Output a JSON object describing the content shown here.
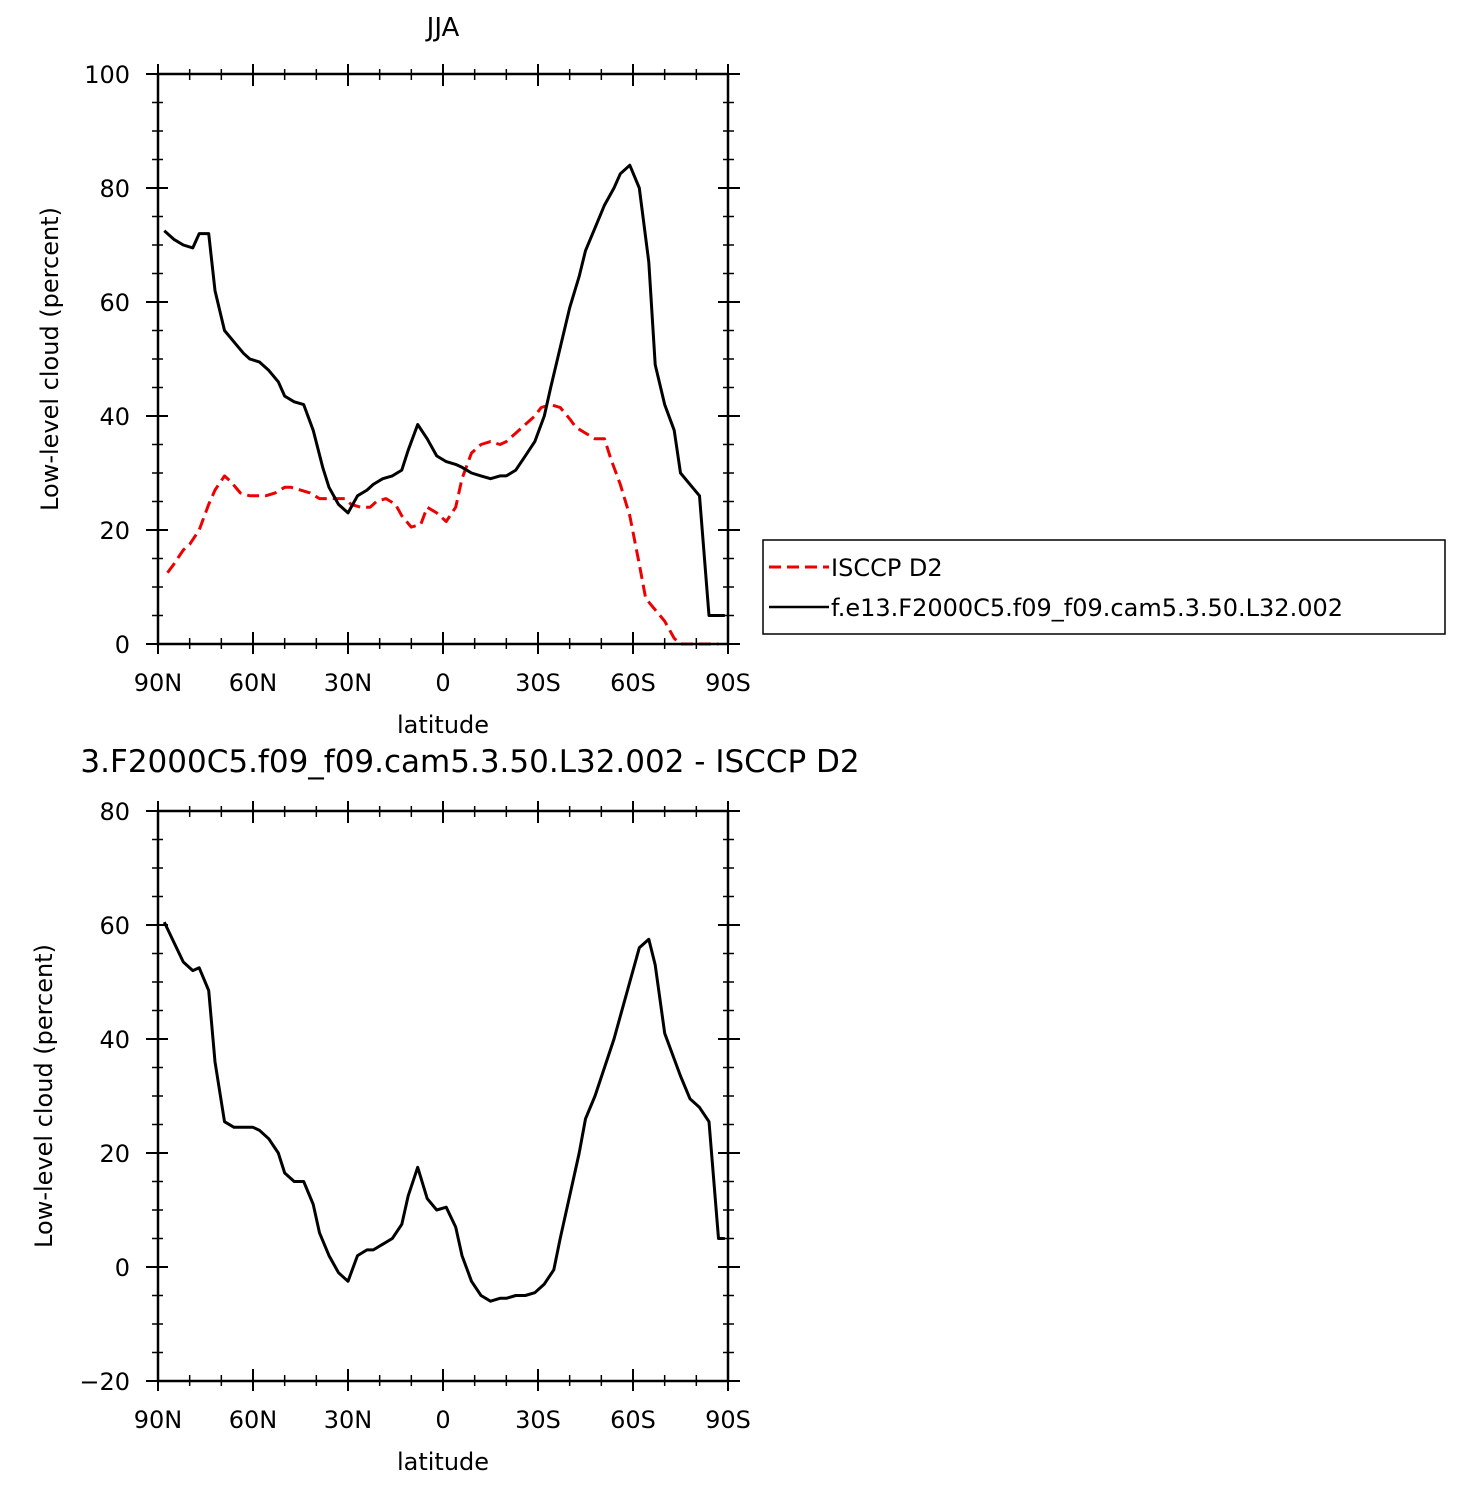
{
  "chart_data": [
    {
      "type": "line",
      "title": "JJA",
      "xlabel": "latitude",
      "ylabel": "Low-level cloud (percent)",
      "xlim": [
        90,
        -90
      ],
      "ylim": [
        0,
        100
      ],
      "x_ticks": [
        90,
        60,
        30,
        0,
        -30,
        -60,
        -90
      ],
      "x_tick_labels": [
        "90N",
        "60N",
        "30N",
        "0",
        "30S",
        "60S",
        "90S"
      ],
      "y_ticks": [
        0,
        20,
        40,
        60,
        80,
        100
      ],
      "y_tick_labels": [
        "0",
        "20",
        "40",
        "60",
        "80",
        "100"
      ],
      "legend_position": "right",
      "series": [
        {
          "name": "ISCCP D2",
          "color": "#ee0000",
          "dash": "dashed",
          "x": [
            87,
            85,
            82,
            80,
            77,
            74,
            72,
            69,
            67,
            64,
            61,
            58,
            56,
            53,
            50,
            48,
            45,
            42,
            39,
            37,
            34,
            31,
            29,
            26,
            23,
            21,
            18,
            15,
            13,
            10,
            7,
            5,
            2,
            -1,
            -4,
            -6,
            -9,
            -12,
            -15,
            -18,
            -20,
            -23,
            -26,
            -29,
            -31,
            -34,
            -37,
            -40,
            -42,
            -45,
            -48,
            -51,
            -53,
            -56,
            -59,
            -62,
            -64,
            -67,
            -70,
            -73,
            -75,
            -78,
            -81,
            -84,
            -87
          ],
          "y": [
            12.5,
            14,
            16.5,
            17.5,
            20,
            24.5,
            27,
            29.5,
            28.5,
            26.5,
            26,
            26,
            26,
            26.5,
            27.5,
            27.5,
            27,
            26.5,
            25.5,
            25.5,
            25.5,
            25.5,
            24.5,
            24,
            24,
            25,
            25.5,
            24.5,
            22.5,
            20.5,
            21,
            24,
            23,
            21.5,
            24,
            29,
            33.5,
            35,
            35.5,
            35,
            35.5,
            37,
            38.5,
            40,
            41.5,
            42,
            41.5,
            39.5,
            38,
            37,
            36,
            36,
            32.5,
            28,
            22.5,
            14,
            8,
            6,
            4,
            1,
            0,
            0,
            0,
            0,
            0
          ]
        },
        {
          "name": "f.e13.F2000C5.f09_f09.cam5.3.50.L32.002",
          "color": "#000000",
          "dash": "solid",
          "x": [
            88,
            85,
            82,
            79,
            77,
            74,
            72,
            69,
            66,
            63,
            61,
            58,
            55,
            52,
            50,
            47,
            44,
            41,
            38,
            36,
            33,
            30,
            27,
            24,
            22,
            19,
            16,
            13,
            11,
            8,
            5,
            2,
            -1,
            -4,
            -6,
            -9,
            -12,
            -15,
            -18,
            -20,
            -23,
            -26,
            -29,
            -32,
            -34,
            -37,
            -40,
            -43,
            -45,
            -48,
            -51,
            -54,
            -56,
            -59,
            -62,
            -65,
            -67,
            -70,
            -73,
            -75,
            -78,
            -81,
            -84,
            -87,
            -89
          ],
          "y": [
            72.5,
            71,
            70,
            69.5,
            72,
            72,
            62,
            55,
            53,
            51,
            50,
            49.5,
            48,
            46,
            43.5,
            42.5,
            42,
            37.5,
            31,
            27.5,
            24.5,
            23,
            26,
            27,
            28,
            29,
            29.5,
            30.5,
            34,
            38.5,
            36,
            33,
            32,
            31.5,
            31,
            30,
            29.5,
            29,
            29.5,
            29.5,
            30.5,
            33,
            35.5,
            40,
            45,
            52,
            59,
            64.5,
            69,
            73,
            77,
            80,
            82.5,
            84,
            80,
            67,
            49,
            42,
            37.5,
            30,
            28,
            26,
            5,
            5,
            5
          ]
        }
      ]
    },
    {
      "type": "line",
      "title": "3.F2000C5.f09_f09.cam5.3.50.L32.002 - ISCCP D2",
      "xlabel": "latitude",
      "ylabel": "Low-level cloud (percent)",
      "xlim": [
        90,
        -90
      ],
      "ylim": [
        -20,
        80
      ],
      "x_ticks": [
        90,
        60,
        30,
        0,
        -30,
        -60,
        -90
      ],
      "x_tick_labels": [
        "90N",
        "60N",
        "30N",
        "0",
        "30S",
        "60S",
        "90S"
      ],
      "y_ticks": [
        -20,
        0,
        20,
        40,
        60,
        80
      ],
      "y_tick_labels": [
        "−20",
        "0",
        "20",
        "40",
        "60",
        "80"
      ],
      "series": [
        {
          "color": "#000000",
          "dash": "solid",
          "x": [
            88,
            85,
            82,
            79,
            77,
            74,
            72,
            69,
            66,
            63,
            60,
            58,
            55,
            52,
            50,
            47,
            44,
            41,
            39,
            36,
            33,
            30,
            27,
            24,
            22,
            19,
            16,
            13,
            11,
            8,
            5,
            2,
            -1,
            -4,
            -6,
            -9,
            -12,
            -15,
            -18,
            -20,
            -23,
            -26,
            -29,
            -32,
            -35,
            -37,
            -40,
            -43,
            -45,
            -48,
            -51,
            -54,
            -56,
            -59,
            -62,
            -65,
            -67,
            -70,
            -73,
            -75,
            -78,
            -81,
            -84,
            -87,
            -89
          ],
          "y": [
            60.5,
            57,
            53.5,
            52,
            52.5,
            48.5,
            36,
            25.5,
            24.5,
            24.5,
            24.5,
            24,
            22.5,
            20,
            16.5,
            15,
            15,
            11,
            6,
            2,
            -1,
            -2.5,
            2,
            3,
            3,
            4,
            5,
            7.5,
            12.5,
            17.5,
            12,
            10,
            10.5,
            7,
            2,
            -2.5,
            -5,
            -6,
            -5.5,
            -5.5,
            -5,
            -5,
            -4.5,
            -3,
            -0.5,
            5,
            12.5,
            20,
            26,
            30,
            35,
            40,
            44,
            50,
            56,
            57.5,
            53,
            41,
            36.5,
            33.5,
            29.5,
            28,
            25.5,
            5,
            5
          ]
        }
      ]
    }
  ]
}
